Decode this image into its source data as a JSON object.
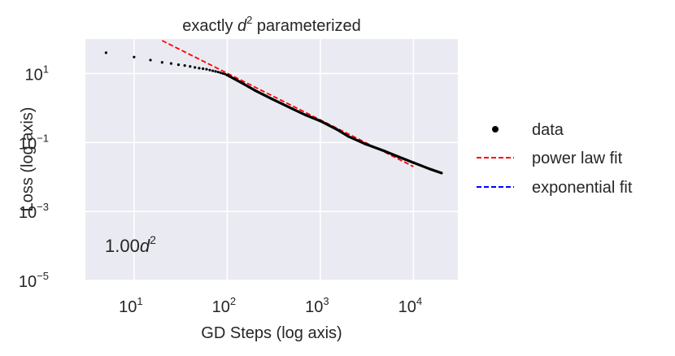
{
  "chart_data": {
    "type": "scatter",
    "title_prefix": "exactly ",
    "title_var": "d",
    "title_exp": "2",
    "title_suffix": " parameterized",
    "xlabel": "GD Steps (log axis)",
    "ylabel": "Loss (log axis)",
    "x_scale": "log",
    "y_scale": "log",
    "xlim": [
      3.0,
      30000
    ],
    "ylim": [
      1e-05,
      100
    ],
    "x_ticks": [
      {
        "base": "10",
        "exp": "1",
        "value": 10
      },
      {
        "base": "10",
        "exp": "2",
        "value": 100
      },
      {
        "base": "10",
        "exp": "3",
        "value": 1000
      },
      {
        "base": "10",
        "exp": "4",
        "value": 10000
      }
    ],
    "y_ticks": [
      {
        "base": "10",
        "exp": "1",
        "value": 10
      },
      {
        "base": "10",
        "exp": "−1",
        "value": 0.1
      },
      {
        "base": "10",
        "exp": "−3",
        "value": 0.001
      },
      {
        "base": "10",
        "exp": "−5",
        "value": 1e-05
      }
    ],
    "grid": true,
    "legend_position": "right-outside",
    "annotation": {
      "coef": "1.00",
      "var": "d",
      "exp": "2"
    },
    "series": [
      {
        "name": "data",
        "style": "dots",
        "color": "#000000",
        "x": [
          5,
          10,
          15,
          20,
          25,
          30,
          35,
          40,
          45,
          50,
          55,
          60,
          65,
          70,
          75,
          80,
          85,
          90,
          95,
          100,
          150,
          200,
          300,
          500,
          700,
          1000,
          1500,
          2000,
          3000,
          5000,
          7000,
          10000,
          15000,
          20000
        ],
        "y": [
          40,
          30,
          24.5,
          21,
          19.5,
          18,
          17,
          16,
          15,
          14.3,
          13.8,
          13.3,
          12.6,
          12,
          11.5,
          11,
          10.5,
          10,
          9.6,
          9.0,
          5.0,
          3.2,
          1.85,
          0.95,
          0.62,
          0.42,
          0.24,
          0.15,
          0.092,
          0.055,
          0.038,
          0.026,
          0.017,
          0.013
        ]
      },
      {
        "name": "power law fit",
        "style": "dashed",
        "color": "#ff0000",
        "x": [
          20,
          10000
        ],
        "y": [
          90,
          0.02
        ]
      },
      {
        "name": "exponential fit",
        "style": "dashed",
        "color": "#0000ff",
        "x": [],
        "y": []
      }
    ]
  }
}
